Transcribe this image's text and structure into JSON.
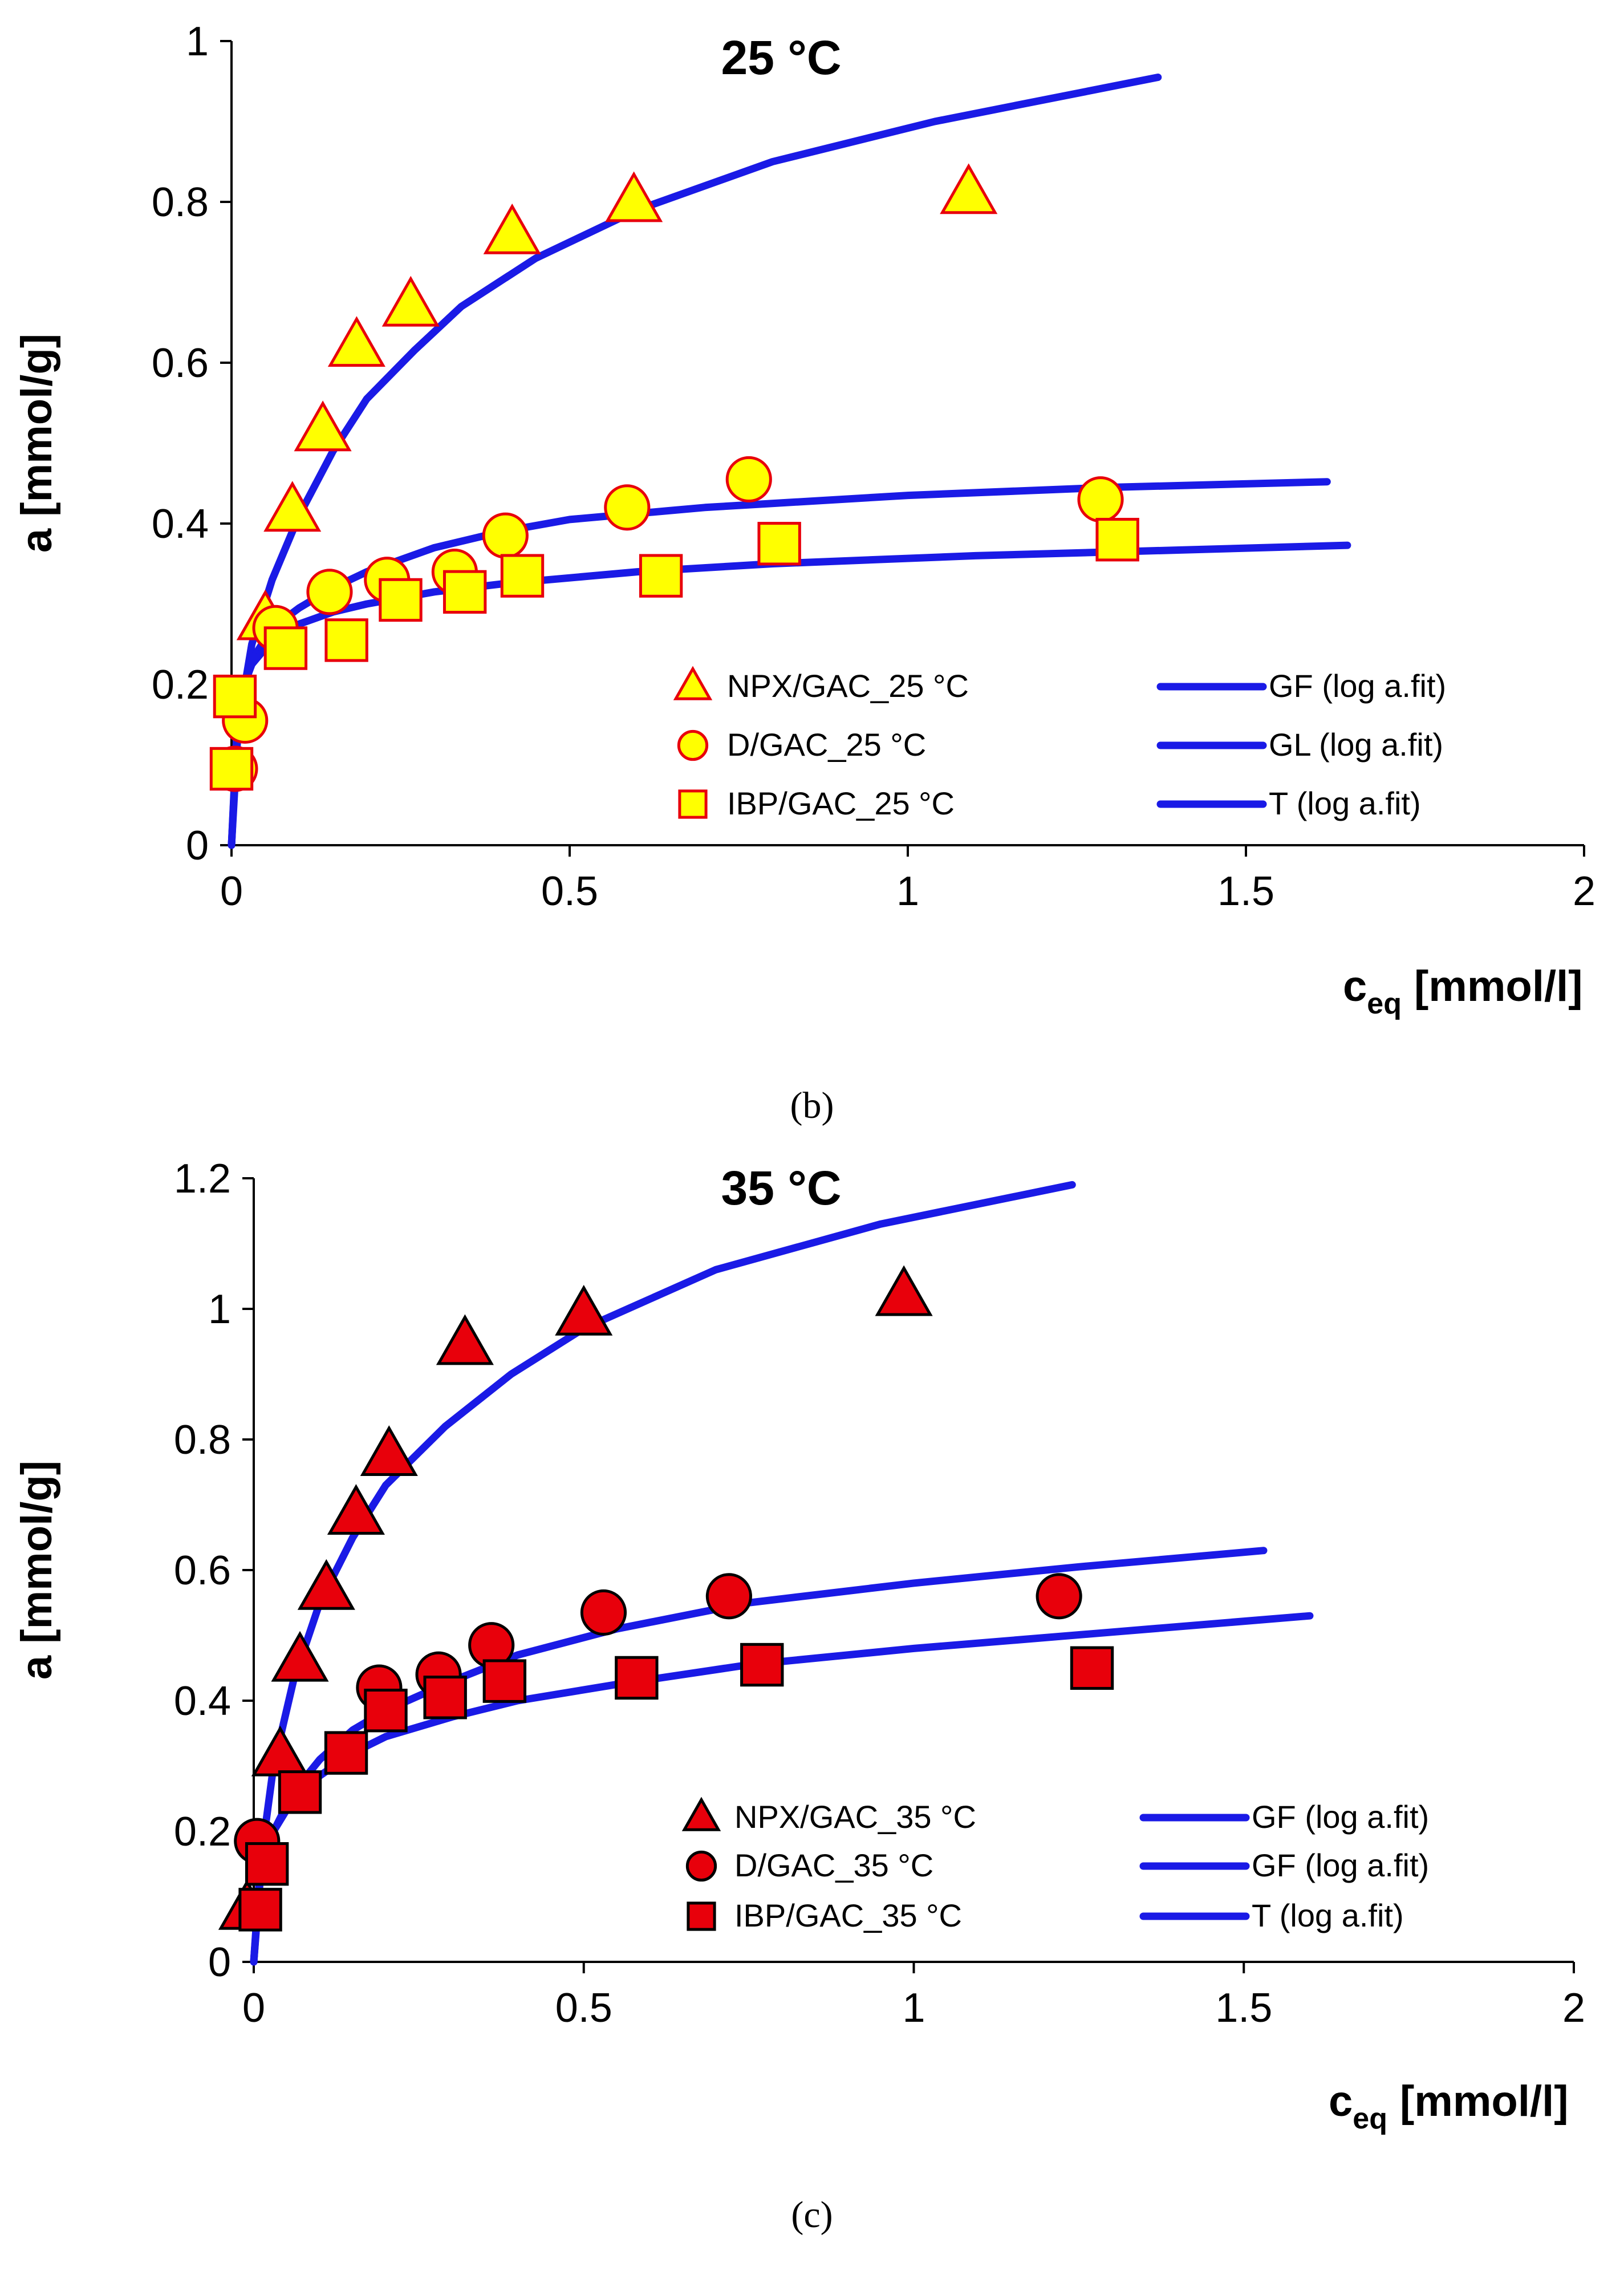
{
  "chart_data": [
    {
      "type": "scatter",
      "title": "25 °C",
      "xlabel_main": "c",
      "xlabel_sub": "eq",
      "xlabel_unit": "[mmol/l]",
      "ylabel": "a [mmol/g]",
      "xlim": [
        0,
        2
      ],
      "ylim": [
        0,
        1
      ],
      "x_ticks": [
        "0",
        "0.5",
        "1",
        "1.5",
        "2"
      ],
      "y_ticks": [
        "0",
        "0.2",
        "0.4",
        "0.6",
        "0.8",
        "1"
      ],
      "panel_label": "(b)",
      "colors": {
        "marker_fill": "#FFFF00",
        "marker_edge": "#E8000B",
        "line": "#1A1AE6"
      },
      "series": [
        {
          "name": "NPX/GAC_25 °C",
          "marker": "triangle",
          "x": [
            0.05,
            0.09,
            0.135,
            0.185,
            0.265,
            0.415,
            0.595,
            1.09
          ],
          "y": [
            0.28,
            0.415,
            0.515,
            0.62,
            0.67,
            0.76,
            0.8,
            0.81
          ]
        },
        {
          "name": "D/GAC_25 °C",
          "marker": "circle",
          "x": [
            0.005,
            0.02,
            0.065,
            0.145,
            0.23,
            0.33,
            0.405,
            0.585,
            0.765,
            1.285
          ],
          "y": [
            0.095,
            0.155,
            0.27,
            0.315,
            0.33,
            0.34,
            0.385,
            0.42,
            0.455,
            0.43
          ]
        },
        {
          "name": "IBP/GAC_25 °C",
          "marker": "square",
          "x": [
            0.0,
            0.005,
            0.08,
            0.17,
            0.25,
            0.345,
            0.43,
            0.635,
            0.81,
            1.31
          ],
          "y": [
            0.095,
            0.185,
            0.245,
            0.255,
            0.305,
            0.315,
            0.335,
            0.335,
            0.375,
            0.38
          ]
        }
      ],
      "fits": [
        {
          "name": "GF (log a.fit)",
          "x": [
            0.0,
            0.01,
            0.03,
            0.06,
            0.1,
            0.15,
            0.2,
            0.27,
            0.34,
            0.45,
            0.6,
            0.8,
            1.04,
            1.37
          ],
          "y": [
            0.0,
            0.15,
            0.25,
            0.33,
            0.41,
            0.49,
            0.555,
            0.615,
            0.67,
            0.73,
            0.79,
            0.85,
            0.9,
            0.955
          ]
        },
        {
          "name": "GL (log a.fit)",
          "x": [
            0.0,
            0.01,
            0.03,
            0.06,
            0.1,
            0.15,
            0.2,
            0.3,
            0.4,
            0.5,
            0.7,
            1.0,
            1.3,
            1.62
          ],
          "y": [
            0.0,
            0.17,
            0.23,
            0.27,
            0.295,
            0.32,
            0.34,
            0.37,
            0.39,
            0.405,
            0.42,
            0.435,
            0.445,
            0.452
          ]
        },
        {
          "name": "T (log a.fit)",
          "x": [
            0.0,
            0.01,
            0.03,
            0.06,
            0.1,
            0.15,
            0.2,
            0.3,
            0.4,
            0.6,
            0.8,
            1.1,
            1.4,
            1.65
          ],
          "y": [
            0.0,
            0.18,
            0.225,
            0.255,
            0.275,
            0.29,
            0.3,
            0.315,
            0.325,
            0.34,
            0.35,
            0.36,
            0.367,
            0.373
          ]
        }
      ],
      "legend": {
        "placement": "lower-right"
      }
    },
    {
      "type": "scatter",
      "title": "35 °C",
      "xlabel_main": "c",
      "xlabel_sub": "eq",
      "xlabel_unit": "[mmol/l]",
      "ylabel": "a [mmol/g]",
      "xlim": [
        0,
        2
      ],
      "ylim": [
        0,
        1.2
      ],
      "x_ticks": [
        "0",
        "0.5",
        "1",
        "1.5",
        "2"
      ],
      "y_ticks": [
        "0",
        "0.2",
        "0.4",
        "0.6",
        "0.8",
        "1",
        "1.2"
      ],
      "panel_label": "(c)",
      "colors": {
        "marker_fill": "#E8000B",
        "marker_edge": "#000000",
        "line": "#1A1AE6"
      },
      "series": [
        {
          "name": "NPX/GAC_35 °C",
          "marker": "triangle",
          "x": [
            -0.01,
            0.04,
            0.07,
            0.11,
            0.155,
            0.205,
            0.32,
            0.5,
            0.985
          ],
          "y": [
            0.08,
            0.315,
            0.46,
            0.57,
            0.685,
            0.775,
            0.945,
            0.99,
            1.02
          ]
        },
        {
          "name": "D/GAC_35 °C",
          "marker": "circle",
          "x": [
            0.005,
            0.19,
            0.28,
            0.36,
            0.53,
            0.72,
            1.22
          ],
          "y": [
            0.185,
            0.42,
            0.44,
            0.485,
            0.535,
            0.56,
            0.56
          ]
        },
        {
          "name": "IBP/GAC_35 °C",
          "marker": "square",
          "x": [
            0.01,
            0.02,
            0.07,
            0.14,
            0.2,
            0.29,
            0.38,
            0.58,
            0.77,
            1.27
          ],
          "y": [
            0.08,
            0.15,
            0.26,
            0.32,
            0.385,
            0.405,
            0.43,
            0.435,
            0.455,
            0.45
          ]
        }
      ],
      "fits": [
        {
          "name": "GF (log a.fit)",
          "x": [
            0.0,
            0.01,
            0.03,
            0.06,
            0.1,
            0.15,
            0.2,
            0.29,
            0.39,
            0.5,
            0.7,
            0.95,
            1.24
          ],
          "y": [
            0.0,
            0.15,
            0.3,
            0.43,
            0.55,
            0.65,
            0.73,
            0.82,
            0.9,
            0.97,
            1.06,
            1.13,
            1.19
          ]
        },
        {
          "name": "GF (log a.fit)",
          "x": [
            0.0,
            0.01,
            0.03,
            0.06,
            0.1,
            0.15,
            0.2,
            0.3,
            0.4,
            0.55,
            0.75,
            1.0,
            1.25,
            1.53
          ],
          "y": [
            0.0,
            0.13,
            0.2,
            0.26,
            0.31,
            0.355,
            0.385,
            0.43,
            0.47,
            0.51,
            0.55,
            0.58,
            0.605,
            0.63
          ]
        },
        {
          "name": "T (log a.fit)",
          "x": [
            0.0,
            0.01,
            0.03,
            0.06,
            0.1,
            0.15,
            0.2,
            0.3,
            0.4,
            0.55,
            0.75,
            1.0,
            1.3,
            1.6
          ],
          "y": [
            0.0,
            0.14,
            0.2,
            0.25,
            0.285,
            0.32,
            0.345,
            0.375,
            0.4,
            0.425,
            0.455,
            0.48,
            0.505,
            0.53
          ]
        }
      ],
      "legend": {
        "placement": "lower-right"
      }
    }
  ]
}
